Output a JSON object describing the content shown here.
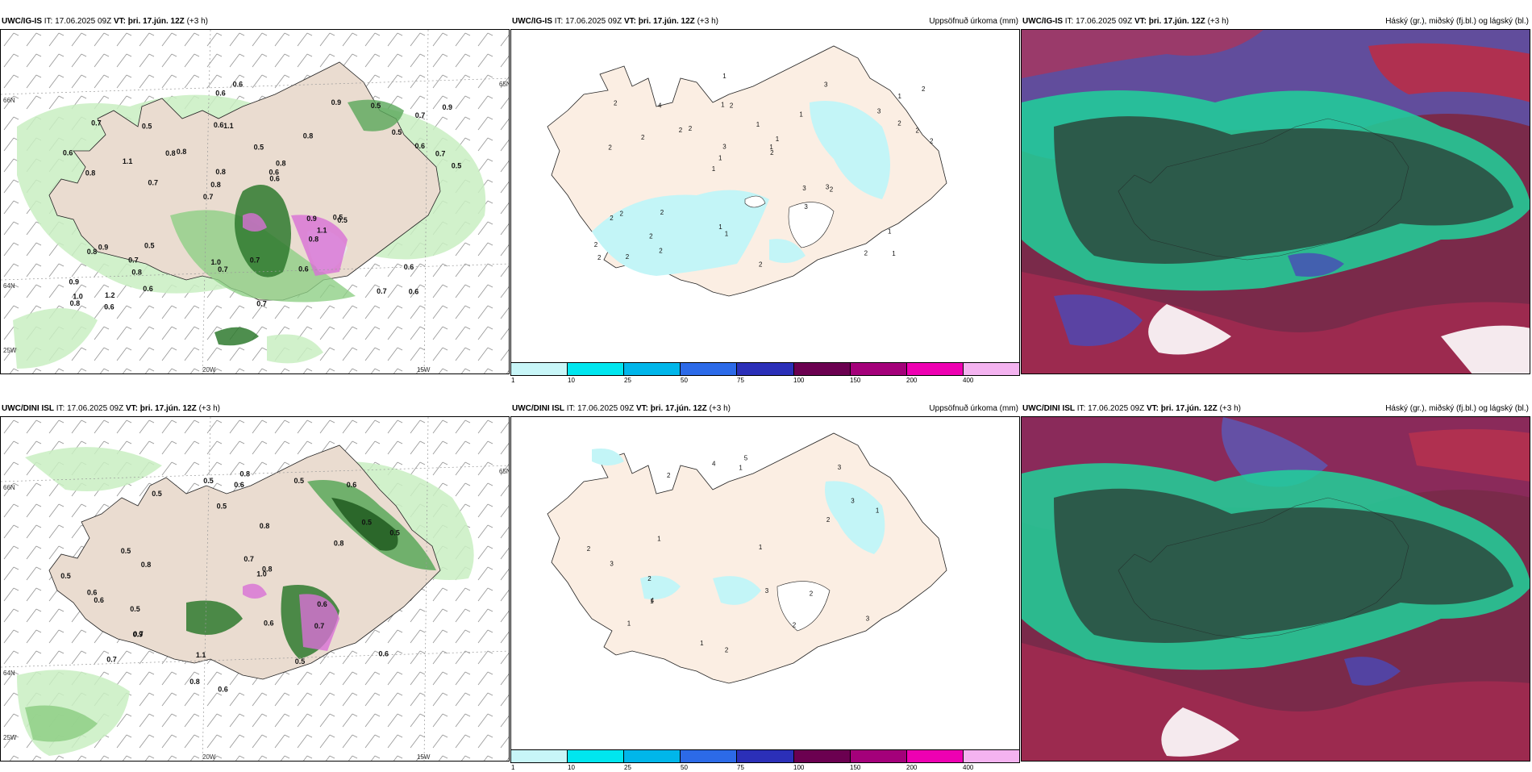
{
  "rows": [
    {
      "precip_title": {
        "model": "UWC/IG-IS",
        "it_label": "IT:",
        "it": "17.06.2025 09Z",
        "vt_label": "VT:",
        "vt": "þri. 17.jún. 12Z",
        "lead": "(+3 h)"
      },
      "accum_title": {
        "model": "UWC/IG-IS",
        "it_label": "IT:",
        "it": "17.06.2025 09Z",
        "vt_label": "VT:",
        "vt": "þri. 17.jún. 12Z",
        "lead": "(+3 h)",
        "right": "Uppsöfnuð úrkoma (mm)"
      },
      "cloud_title": {
        "model": "UWC/IG-IS",
        "it_label": "IT:",
        "it": "17.06.2025 09Z",
        "vt_label": "VT:",
        "vt": "þri. 17.jún. 12Z",
        "lead": "(+3 h)",
        "right": "Háský (gr.), miðský (fj.bl.) og lágský (bl.)"
      },
      "precip_labels": [
        "0.6",
        "0.8",
        "0.7",
        "0.7",
        "0.8",
        "1.2",
        "0.6",
        "0.5",
        "0.9",
        "0.8",
        "0.9",
        "0.8",
        "1.1",
        "0.8",
        "0.5",
        "0.7",
        "0.6",
        "0.5",
        "0.9",
        "0.6",
        "0.8",
        "1.0",
        "0.8",
        "0.5",
        "0.9",
        "0.5",
        "0.7",
        "0.6",
        "0.5",
        "0.7",
        "0.8",
        "1.1",
        "0.8",
        "0.6",
        "0.7",
        "0.6",
        "1.0",
        "0.7",
        "0.6",
        "0.8",
        "0.5",
        "0.9",
        "1.1",
        "0.6",
        "0.7",
        "0.6",
        "0.8",
        "0.7",
        "0.5",
        "0.6",
        "0.7",
        "0.6"
      ],
      "accum_labels": [
        "1",
        "2",
        "1",
        "1",
        "1",
        "2",
        "1",
        "1",
        "2",
        "2",
        "2",
        "2",
        "2",
        "1",
        "2",
        "2",
        "1",
        "2",
        "3",
        "2",
        "1",
        "1",
        "3",
        "4",
        "3",
        "2",
        "2",
        "1",
        "3",
        "2",
        "2",
        "2",
        "3",
        "2",
        "2",
        "1",
        "2",
        "1",
        "2",
        "2",
        "3",
        "2"
      ],
      "lat_labels": [
        "66N",
        "64N",
        "65N"
      ],
      "lon_labels": [
        "20W",
        "15W",
        "25W"
      ]
    },
    {
      "precip_title": {
        "model": "UWC/DINI ISL",
        "it_label": "IT:",
        "it": "17.06.2025 09Z",
        "vt_label": "VT:",
        "vt": "þri. 17.jún. 12Z",
        "lead": "(+3 h)"
      },
      "accum_title": {
        "model": "UWC/DINI ISL",
        "it_label": "IT:",
        "it": "17.06.2025 09Z",
        "vt_label": "VT:",
        "vt": "þri. 17.jún. 12Z",
        "lead": "(+3 h)",
        "right": "Uppsöfnuð úrkoma (mm)"
      },
      "cloud_title": {
        "model": "UWC/DINI ISL",
        "it_label": "IT:",
        "it": "17.06.2025 09Z",
        "vt_label": "VT:",
        "vt": "þri. 17.jún. 12Z",
        "lead": "(+3 h)",
        "right": "Háský (gr.), miðský (fj.bl.) og lágský (bl.)"
      },
      "precip_labels": [
        "0.7",
        "0.6",
        "0.5",
        "0.5",
        "0.6",
        "0.8",
        "0.5",
        "0.7",
        "0.5",
        "0.8",
        "0.6",
        "0.8",
        "0.7",
        "1.0",
        "0.6",
        "0.5",
        "0.6",
        "0.5",
        "0.9",
        "0.8",
        "0.5",
        "0.6",
        "0.5",
        "0.8",
        "0.7",
        "1.1",
        "0.6",
        "0.5",
        "0.8",
        "0.6",
        "0.5"
      ],
      "accum_labels": [
        "1",
        "3",
        "2",
        "3",
        "3",
        "1",
        "2",
        "4",
        "1",
        "2",
        "3",
        "5",
        "2",
        "1",
        "2",
        "4",
        "3",
        "2",
        "1",
        "1",
        "2",
        "1"
      ],
      "lat_labels": [
        "66N",
        "64N",
        "65N"
      ],
      "lon_labels": [
        "20W",
        "15W",
        "25W"
      ]
    }
  ],
  "colorbar": {
    "ticks": [
      "1",
      "10",
      "25",
      "50",
      "75",
      "100",
      "150",
      "200",
      "400"
    ],
    "colors": [
      "#c8f6f8",
      "#00e6ef",
      "#00b6ea",
      "#2c6ae8",
      "#2b2fb8",
      "#6b0050",
      "#a4007a",
      "#ee00b2",
      "#f4b3f0"
    ]
  }
}
